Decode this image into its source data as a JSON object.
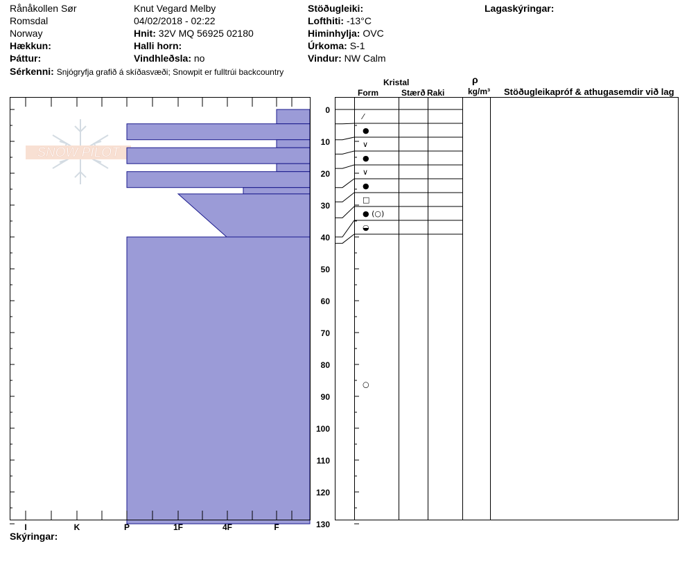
{
  "header": {
    "location": "Rånåkollen Sør",
    "region": "Romsdal",
    "country": "Norway",
    "elevation_label": "Hækkun:",
    "aspect_label": "Þáttur:",
    "features_label": "Sérkenni:",
    "features_value": "Snjógryfja grafið á skíðasvæði;  Snowpit er fulltrúi backcountry",
    "observer": "Knut Vegard Melby",
    "datetime": "04/02/2018 - 02:22",
    "coords_label": "Hnit:",
    "coords_value": "32V MQ 56925 02180",
    "slope_label": "Halli horn:",
    "wind_loading_label": "Vindhleðsla:",
    "wind_loading_value": "no",
    "stability_label": "Stöðugleiki:",
    "air_temp_label": "Lofthiti:",
    "air_temp_value": "-13°C",
    "sky_label": "Himinhylja:",
    "sky_value": "OVC",
    "precip_label": "Úrkoma:",
    "precip_value": "S-1",
    "wind_label": "Vindur:",
    "wind_value": "NW Calm",
    "layer_notes_label": "Lagaskýringar:",
    "legend_label": "Skýringar:"
  },
  "table_headers": {
    "crystal": "Kristal",
    "form": "Form",
    "size": "Stærð",
    "moisture": "Raki",
    "density_symbol": "ρ",
    "density_unit": "kg/m³",
    "comments": "Stöðugleikapróf & athugasemdir við lag"
  },
  "logo_text": "SNOW PILOT",
  "colors": {
    "fill": "#9b9bd7",
    "stroke": "#1a1a8c"
  },
  "chart_data": {
    "type": "bar",
    "orientation": "horizontal",
    "description_axis": "hardness",
    "x_categories": [
      "I",
      "K",
      "P",
      "1F",
      "4F",
      "F"
    ],
    "y_ticks": [
      0,
      10,
      20,
      30,
      40,
      50,
      60,
      70,
      80,
      90,
      100,
      110,
      120,
      130
    ],
    "ylim": [
      0,
      130
    ],
    "y_direction": "down",
    "hardness_profile": [
      {
        "top": 0,
        "bottom": 4.5,
        "hardness": "F"
      },
      {
        "top": 4.5,
        "bottom": 9.5,
        "hardness": "P"
      },
      {
        "top": 9.5,
        "bottom": 12,
        "hardness": "F"
      },
      {
        "top": 12,
        "bottom": 17,
        "hardness": "P"
      },
      {
        "top": 17,
        "bottom": 19.5,
        "hardness": "F"
      },
      {
        "top": 19.5,
        "bottom": 24.5,
        "hardness": "P"
      },
      {
        "top": 24.5,
        "bottom": 26.5,
        "hardness": "4F+"
      },
      {
        "top": 26.5,
        "bottom": 40,
        "hardness": "1F+",
        "hardness_bottom": "F-",
        "shape": "taper"
      },
      {
        "top": 40,
        "bottom": 130,
        "hardness": "P"
      }
    ],
    "layer_boundaries": [
      0,
      4.5,
      9.5,
      14,
      18.5,
      24.5,
      29,
      34,
      40,
      42
    ],
    "grain_forms": [
      {
        "depth": 2.5,
        "symbol": "⁄"
      },
      {
        "depth": 7,
        "symbol": "●"
      },
      {
        "depth": 11.5,
        "symbol": "∨"
      },
      {
        "depth": 16,
        "symbol": "●"
      },
      {
        "depth": 20.5,
        "symbol": "∨"
      },
      {
        "depth": 25,
        "symbol": "●"
      },
      {
        "depth": 29.5,
        "symbol": "□"
      },
      {
        "depth": 35,
        "symbol": "● (○)"
      },
      {
        "depth": 41,
        "symbol": "◒"
      },
      {
        "depth": 86,
        "symbol": "○"
      }
    ]
  }
}
